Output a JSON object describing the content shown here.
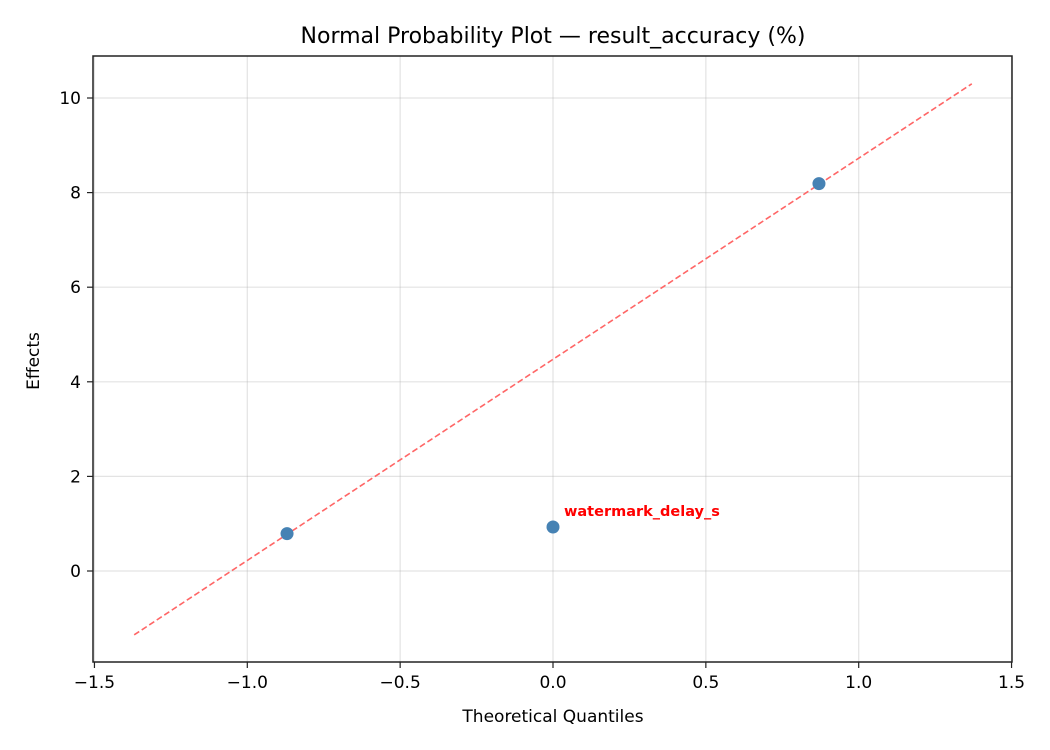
{
  "chart_data": {
    "type": "scatter",
    "title": "Normal Probability Plot — result_accuracy (%)",
    "xlabel": "Theoretical Quantiles",
    "ylabel": "Effects",
    "xlim": [
      -1.51,
      1.51
    ],
    "ylim": [
      -1.9,
      10.9
    ],
    "xticks": [
      -1.5,
      -1.0,
      -0.5,
      0.0,
      0.5,
      1.0,
      1.5
    ],
    "xtick_labels": [
      "−1.5",
      "−1.0",
      "−0.5",
      "0.0",
      "0.5",
      "1.0",
      "1.5"
    ],
    "yticks": [
      0,
      2,
      4,
      6,
      8,
      10
    ],
    "ytick_labels": [
      "0",
      "2",
      "4",
      "6",
      "8",
      "10"
    ],
    "grid": true,
    "series": [
      {
        "name": "effects",
        "color": "#4682b4",
        "points": [
          {
            "x": -0.87,
            "y": 0.79
          },
          {
            "x": 0.0,
            "y": 0.93
          },
          {
            "x": 0.87,
            "y": 8.19
          }
        ]
      }
    ],
    "reference_line": {
      "style": "dashed",
      "color": "#ff6666",
      "x": [
        -1.37,
        1.37
      ],
      "y": [
        -1.35,
        10.3
      ]
    },
    "annotations": [
      {
        "text": "watermark_delay_s",
        "x": 0.0,
        "y": 0.93,
        "color": "#ff0000"
      }
    ]
  }
}
